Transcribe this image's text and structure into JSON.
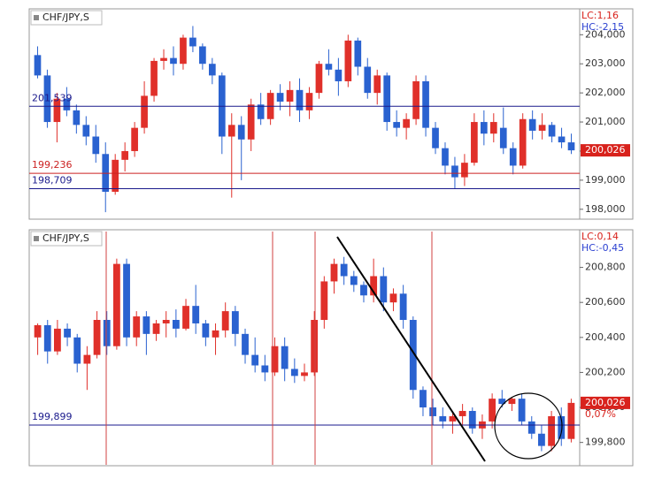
{
  "chart_data": [
    {
      "type": "candlestick",
      "title": "CHF/JPY,S",
      "annotations": [
        "LC:1,16",
        "HC:-2,15"
      ],
      "up_color": "#e0302a",
      "down_color": "#2a62d0",
      "open": [
        203.3,
        202.6,
        201.0,
        201.8,
        201.4,
        200.9,
        200.5,
        199.9,
        198.6,
        199.7,
        200.0,
        200.8,
        201.9,
        203.1,
        203.2,
        203.0,
        203.9,
        203.6,
        203.0,
        202.6,
        200.5,
        200.9,
        200.4,
        201.6,
        201.1,
        202.0,
        201.7,
        202.1,
        201.4,
        202.0,
        203.0,
        202.8,
        202.4,
        203.8,
        202.9,
        202.0,
        202.6,
        201.0,
        200.8,
        201.1,
        202.4,
        200.8,
        200.1,
        199.5,
        199.1,
        199.6,
        201.0,
        200.6,
        200.8,
        200.1,
        199.5,
        201.1,
        200.7,
        200.9,
        200.5,
        200.3
      ],
      "high": [
        203.6,
        202.8,
        202.0,
        202.2,
        201.6,
        201.2,
        200.9,
        200.3,
        199.9,
        200.3,
        201.0,
        202.4,
        203.2,
        203.5,
        203.6,
        204.0,
        204.3,
        203.7,
        203.2,
        202.7,
        201.3,
        201.2,
        201.8,
        202.0,
        202.1,
        202.3,
        202.4,
        202.5,
        202.2,
        203.1,
        203.5,
        203.2,
        204.0,
        203.9,
        203.2,
        202.8,
        202.7,
        201.4,
        201.3,
        202.6,
        202.6,
        201.0,
        200.3,
        199.8,
        199.9,
        201.3,
        201.4,
        201.3,
        201.5,
        200.3,
        201.3,
        201.4,
        201.3,
        201.0,
        200.8,
        200.6
      ],
      "low": [
        202.5,
        200.8,
        200.3,
        201.2,
        200.6,
        200.2,
        199.6,
        197.9,
        198.5,
        199.3,
        199.8,
        200.6,
        201.7,
        202.8,
        202.6,
        202.8,
        203.4,
        202.8,
        202.3,
        199.9,
        198.4,
        199.0,
        200.0,
        200.9,
        200.9,
        201.4,
        201.2,
        201.0,
        201.1,
        201.8,
        202.6,
        201.9,
        202.2,
        202.6,
        201.8,
        201.6,
        200.7,
        200.5,
        200.4,
        200.9,
        200.5,
        199.9,
        199.2,
        198.7,
        198.8,
        199.5,
        200.2,
        200.3,
        199.9,
        199.2,
        199.4,
        200.4,
        200.4,
        200.3,
        200.1,
        199.9
      ],
      "close": [
        202.6,
        201.0,
        201.8,
        201.4,
        200.9,
        200.5,
        199.9,
        198.6,
        199.7,
        200.0,
        200.8,
        201.9,
        203.1,
        203.2,
        203.0,
        203.9,
        203.6,
        203.0,
        202.6,
        200.5,
        200.9,
        200.4,
        201.6,
        201.1,
        202.0,
        201.7,
        202.1,
        201.4,
        202.0,
        203.0,
        202.8,
        202.4,
        203.8,
        202.9,
        202.0,
        202.6,
        201.0,
        200.8,
        201.1,
        202.4,
        200.8,
        200.1,
        199.5,
        199.1,
        199.6,
        201.0,
        200.6,
        201.0,
        200.1,
        199.5,
        201.1,
        200.7,
        200.9,
        200.5,
        200.3,
        200.026
      ],
      "ylim": [
        197.66,
        204.89
      ],
      "yticks": [
        {
          "value": 198.0,
          "label": "198,000"
        },
        {
          "value": 199.0,
          "label": "199,000"
        },
        {
          "value": 200.0,
          "label": "200,000"
        },
        {
          "value": 201.0,
          "label": "201,000"
        },
        {
          "value": 202.0,
          "label": "202,000"
        },
        {
          "value": 203.0,
          "label": "203,000"
        },
        {
          "value": 204.0,
          "label": "204,000"
        }
      ],
      "hlines": [
        {
          "value": 201.539,
          "label": "201,539",
          "color": "#1a1a8c"
        },
        {
          "value": 199.236,
          "label": "199,236",
          "color": "#cc2222"
        },
        {
          "value": 198.709,
          "label": "198,709",
          "color": "#1a1a8c"
        }
      ],
      "last": {
        "value": 200.026,
        "label": "200,026"
      }
    },
    {
      "type": "candlestick",
      "title": "CHF/JPY,S",
      "annotations": [
        "LC:0,14",
        "HC:-0,45"
      ],
      "up_color": "#e0302a",
      "down_color": "#2a62d0",
      "open": [
        200.4,
        200.47,
        200.32,
        200.45,
        200.4,
        200.25,
        200.3,
        200.5,
        200.35,
        200.82,
        200.4,
        200.52,
        200.42,
        200.48,
        200.5,
        200.45,
        200.58,
        200.48,
        200.4,
        200.44,
        200.55,
        200.42,
        200.3,
        200.24,
        200.2,
        200.35,
        200.22,
        200.18,
        200.2,
        200.5,
        200.72,
        200.82,
        200.75,
        200.7,
        200.64,
        200.75,
        200.6,
        200.65,
        200.5,
        200.1,
        200.0,
        199.95,
        199.92,
        199.95,
        199.98,
        199.88,
        199.92,
        200.05,
        200.02,
        200.05,
        199.92,
        199.85,
        199.78,
        199.95,
        199.82
      ],
      "high": [
        200.48,
        200.5,
        200.5,
        200.48,
        200.42,
        200.35,
        200.55,
        200.55,
        200.85,
        200.85,
        200.55,
        200.55,
        200.5,
        200.55,
        200.56,
        200.62,
        200.7,
        200.5,
        200.48,
        200.6,
        200.58,
        200.45,
        200.4,
        200.3,
        200.4,
        200.4,
        200.28,
        200.25,
        200.55,
        200.75,
        200.85,
        200.86,
        200.78,
        200.72,
        200.85,
        200.8,
        200.68,
        200.7,
        200.52,
        200.12,
        200.05,
        200.0,
        199.98,
        200.02,
        200.0,
        199.96,
        200.08,
        200.1,
        200.06,
        200.08,
        199.95,
        199.9,
        199.98,
        200.0,
        200.05
      ],
      "low": [
        200.3,
        200.25,
        200.3,
        200.35,
        200.2,
        200.1,
        200.28,
        200.3,
        200.33,
        200.35,
        200.35,
        200.3,
        200.38,
        200.4,
        200.4,
        200.44,
        200.42,
        200.35,
        200.3,
        200.4,
        200.35,
        200.25,
        200.2,
        200.15,
        200.18,
        200.15,
        200.14,
        200.15,
        200.18,
        200.45,
        200.65,
        200.7,
        200.66,
        200.6,
        200.6,
        200.55,
        200.55,
        200.45,
        200.05,
        199.95,
        199.9,
        199.88,
        199.85,
        199.9,
        199.85,
        199.82,
        199.88,
        200.0,
        199.98,
        199.9,
        199.82,
        199.75,
        199.75,
        199.78,
        199.8
      ],
      "close": [
        200.47,
        200.32,
        200.45,
        200.4,
        200.25,
        200.3,
        200.5,
        200.35,
        200.82,
        200.4,
        200.52,
        200.42,
        200.48,
        200.5,
        200.45,
        200.58,
        200.48,
        200.4,
        200.44,
        200.55,
        200.42,
        200.3,
        200.24,
        200.2,
        200.35,
        200.22,
        200.18,
        200.2,
        200.5,
        200.72,
        200.82,
        200.75,
        200.7,
        200.64,
        200.75,
        200.6,
        200.65,
        200.5,
        200.1,
        200.0,
        199.95,
        199.92,
        199.95,
        199.98,
        199.88,
        199.92,
        200.05,
        200.02,
        200.05,
        199.92,
        199.85,
        199.78,
        199.95,
        199.82,
        200.026
      ],
      "ylim": [
        199.667,
        201.015
      ],
      "yticks": [
        {
          "value": 199.8,
          "label": "199,800"
        },
        {
          "value": 200.0,
          "label": "200,000"
        },
        {
          "value": 200.2,
          "label": "200,200"
        },
        {
          "value": 200.4,
          "label": "200,400"
        },
        {
          "value": 200.6,
          "label": "200,600"
        },
        {
          "value": 200.8,
          "label": "200,800"
        }
      ],
      "hlines": [
        {
          "value": 199.899,
          "label": "199,899",
          "color": "#1a1a8c"
        }
      ],
      "last": {
        "value": 200.026,
        "label": "200,026"
      },
      "change": "0,07%"
    }
  ]
}
